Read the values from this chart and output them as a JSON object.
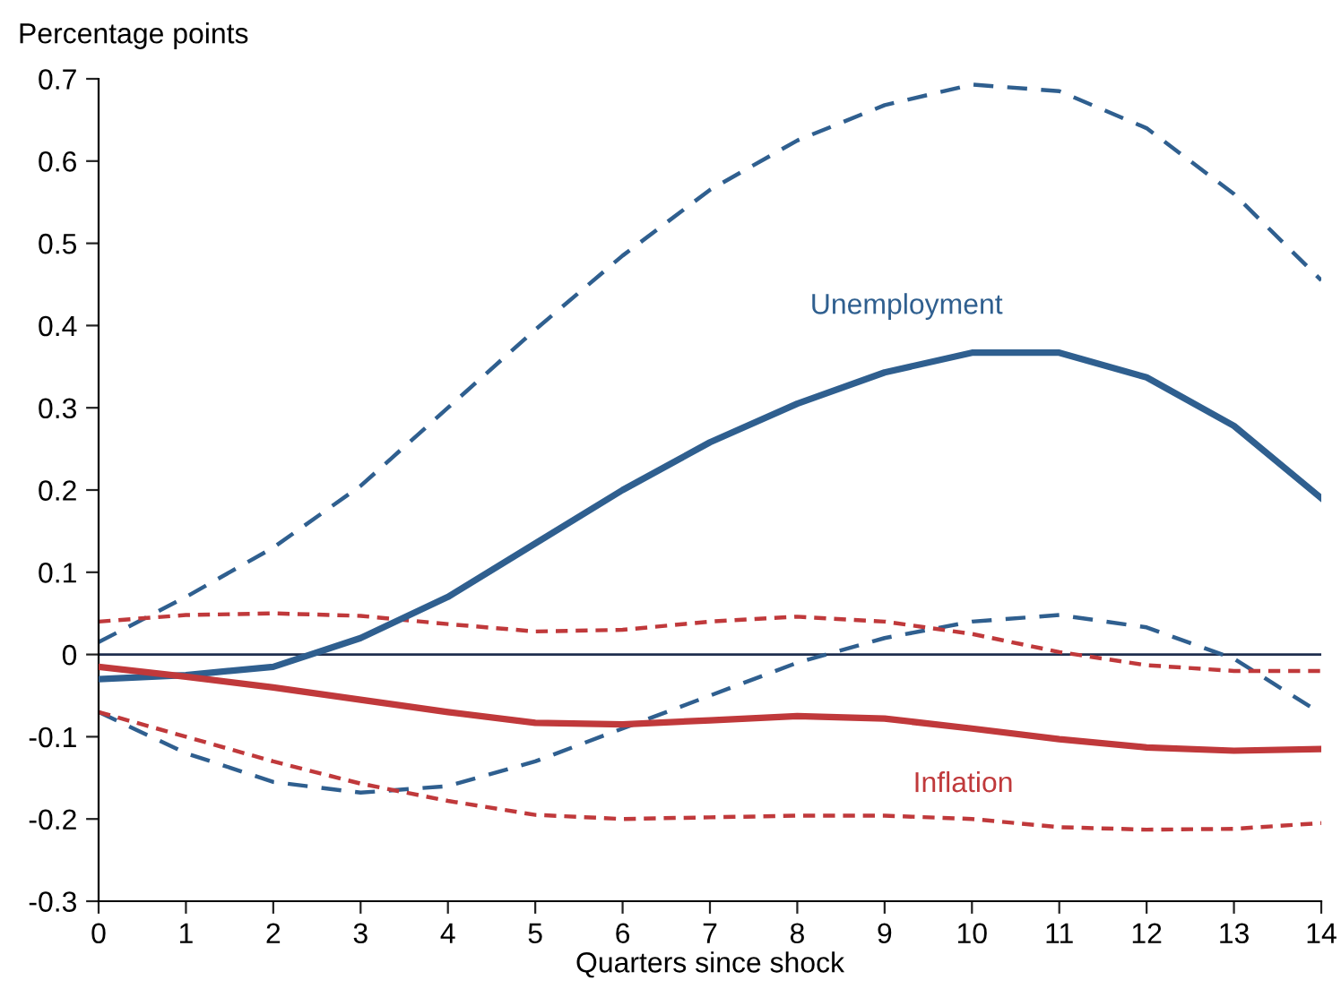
{
  "chart_data": {
    "type": "line",
    "ylabel": "Percentage points",
    "xlabel": "Quarters since shock",
    "x": [
      0,
      1,
      2,
      3,
      4,
      5,
      6,
      7,
      8,
      9,
      10,
      11,
      12,
      13,
      14
    ],
    "series": [
      {
        "name": "Unemployment",
        "color": "#2f5f8f",
        "line_style": "solid",
        "values": [
          -0.03,
          -0.025,
          -0.015,
          0.02,
          0.07,
          0.135,
          0.2,
          0.258,
          0.305,
          0.343,
          0.367,
          0.367,
          0.337,
          0.278,
          0.19
        ]
      },
      {
        "color": "#2f5f8f",
        "line_style": "dashed",
        "values": [
          0.015,
          0.07,
          0.13,
          0.205,
          0.3,
          0.395,
          0.485,
          0.565,
          0.625,
          0.668,
          0.693,
          0.685,
          0.64,
          0.56,
          0.455
        ]
      },
      {
        "color": "#2f5f8f",
        "line_style": "dashed",
        "values": [
          -0.07,
          -0.12,
          -0.155,
          -0.168,
          -0.16,
          -0.13,
          -0.09,
          -0.05,
          -0.01,
          0.02,
          0.04,
          0.048,
          0.033,
          -0.005,
          -0.072
        ]
      },
      {
        "name": "Inflation",
        "color": "#c0393b",
        "line_style": "solid",
        "values": [
          -0.015,
          -0.027,
          -0.04,
          -0.055,
          -0.07,
          -0.083,
          -0.085,
          -0.08,
          -0.075,
          -0.078,
          -0.09,
          -0.103,
          -0.113,
          -0.117,
          -0.115
        ]
      },
      {
        "color": "#c0393b",
        "line_style": "dotted",
        "values": [
          0.04,
          0.048,
          0.05,
          0.047,
          0.037,
          0.028,
          0.03,
          0.04,
          0.046,
          0.04,
          0.025,
          0.003,
          -0.013,
          -0.02,
          -0.02
        ]
      },
      {
        "color": "#c0393b",
        "line_style": "dotted",
        "values": [
          -0.07,
          -0.1,
          -0.13,
          -0.157,
          -0.178,
          -0.195,
          -0.2,
          -0.198,
          -0.196,
          -0.196,
          -0.2,
          -0.21,
          -0.213,
          -0.212,
          -0.205
        ]
      }
    ],
    "xlim": [
      0,
      14
    ],
    "xticks": [
      0,
      1,
      2,
      3,
      4,
      5,
      6,
      7,
      8,
      9,
      10,
      11,
      12,
      13,
      14
    ],
    "ylim": [
      -0.3,
      0.7
    ],
    "yticks": [
      -0.3,
      -0.2,
      -0.1,
      0,
      0.1,
      0.2,
      0.3,
      0.4,
      0.5,
      0.6,
      0.7
    ],
    "ref_lines": [
      {
        "axis": "y",
        "value": 0,
        "color": "#1f2f4f"
      }
    ],
    "grid": false,
    "legend": false,
    "marker": "none"
  }
}
